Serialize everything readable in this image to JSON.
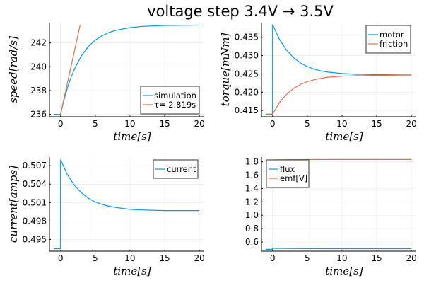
{
  "chart_data": [
    {
      "type": "line",
      "title": "voltage step 3.4V → 3.5V",
      "xlabel": "time[s]",
      "ylabel": "speed[rad/s]",
      "xlim": [
        -1.6,
        20.6
      ],
      "ylim": [
        235.8,
        243.7
      ],
      "xticks": [
        "0",
        "5",
        "10",
        "15",
        "20"
      ],
      "xtick_values": [
        0,
        5,
        10,
        15,
        20
      ],
      "yticks": [
        "236",
        "238",
        "240",
        "242"
      ],
      "ytick_values": [
        236,
        238,
        240,
        242
      ],
      "grid": true,
      "legend": "bottom-right",
      "series": [
        {
          "name": "simulation",
          "color": "#009af9",
          "x": [
            -1,
            0,
            0.5,
            1,
            1.5,
            2,
            3,
            4,
            5,
            6,
            7,
            8,
            10,
            12,
            15,
            20
          ],
          "y": [
            236,
            236,
            237.22,
            238.24,
            239.09,
            239.81,
            240.91,
            241.69,
            242.23,
            242.61,
            242.88,
            243.06,
            243.28,
            243.39,
            243.46,
            243.49
          ]
        },
        {
          "name": "τ= 2.819s",
          "color": "#e26f46",
          "x": [
            0,
            2.819
          ],
          "y": [
            236,
            243.5
          ]
        }
      ]
    },
    {
      "type": "line",
      "xlabel": "time[s]",
      "ylabel": "torque[mNm]",
      "xlim": [
        -1.6,
        20.6
      ],
      "ylim": [
        0.4133,
        0.439
      ],
      "xticks": [
        "0",
        "5",
        "10",
        "15",
        "20"
      ],
      "xtick_values": [
        0,
        5,
        10,
        15,
        20
      ],
      "yticks": [
        "0.415",
        "0.420",
        "0.425",
        "0.430",
        "0.435"
      ],
      "ytick_values": [
        0.415,
        0.42,
        0.425,
        0.43,
        0.435
      ],
      "grid": true,
      "legend": "top-right",
      "series": [
        {
          "name": "motor",
          "color": "#009af9",
          "x": [
            -1,
            0,
            0,
            1,
            2,
            3,
            4,
            5,
            6,
            7,
            8,
            10,
            12,
            15,
            20
          ],
          "y": [
            0.414,
            0.414,
            0.4385,
            0.4344,
            0.4315,
            0.4295,
            0.428,
            0.427,
            0.4263,
            0.4258,
            0.4255,
            0.4251,
            0.4249,
            0.4248,
            0.4247
          ]
        },
        {
          "name": "friction",
          "color": "#e26f46",
          "x": [
            -1,
            0,
            1,
            2,
            3,
            4,
            5,
            6,
            7,
            8,
            10,
            12,
            15,
            20
          ],
          "y": [
            0.414,
            0.414,
            0.4172,
            0.4194,
            0.421,
            0.4221,
            0.4229,
            0.4234,
            0.4238,
            0.4241,
            0.4244,
            0.4245,
            0.4246,
            0.4247
          ]
        }
      ]
    },
    {
      "type": "line",
      "xlabel": "time[s]",
      "ylabel": "current[amps]",
      "xlim": [
        -1.6,
        20.6
      ],
      "ylim": [
        0.4931,
        0.5084
      ],
      "xticks": [
        "0",
        "5",
        "10",
        "15",
        "20"
      ],
      "xtick_values": [
        0,
        5,
        10,
        15,
        20
      ],
      "yticks": [
        "0.495",
        "0.498",
        "0.501",
        "0.504",
        "0.507"
      ],
      "ytick_values": [
        0.495,
        0.498,
        0.501,
        0.504,
        0.507
      ],
      "grid": true,
      "legend": "top-right",
      "series": [
        {
          "name": "current",
          "color": "#009af9",
          "x": [
            -1,
            0,
            0,
            1,
            2,
            3,
            4,
            5,
            6,
            7,
            8,
            10,
            12,
            15,
            20
          ],
          "y": [
            0.4935,
            0.4935,
            0.508,
            0.5055,
            0.5038,
            0.5026,
            0.5017,
            0.5011,
            0.5007,
            0.5004,
            0.5002,
            0.4999,
            0.4998,
            0.4997,
            0.4997
          ]
        }
      ]
    },
    {
      "type": "line",
      "xlabel": "time[s]",
      "ylabel": "",
      "xlim": [
        -1.6,
        20.6
      ],
      "ylim": [
        0.462,
        1.87
      ],
      "xticks": [
        "0",
        "5",
        "10",
        "15",
        "20"
      ],
      "xtick_values": [
        0,
        5,
        10,
        15,
        20
      ],
      "yticks": [
        "0.6",
        "0.8",
        "1.0",
        "1.2",
        "1.4",
        "1.6",
        "1.8"
      ],
      "ytick_values": [
        0.6,
        0.8,
        1.0,
        1.2,
        1.4,
        1.6,
        1.8
      ],
      "grid": true,
      "legend": "top-left",
      "series": [
        {
          "name": "flux",
          "color": "#009af9",
          "x": [
            -1,
            0,
            0,
            2,
            5,
            10,
            20
          ],
          "y": [
            0.49,
            0.49,
            0.505,
            0.502,
            0.5,
            0.499,
            0.499
          ]
        },
        {
          "name": "emf[V]",
          "color": "#e26f46",
          "x": [
            -1,
            0,
            0,
            2,
            5,
            10,
            20
          ],
          "y": [
            1.77,
            1.77,
            1.828,
            1.831,
            1.833,
            1.834,
            1.834
          ]
        }
      ]
    }
  ]
}
